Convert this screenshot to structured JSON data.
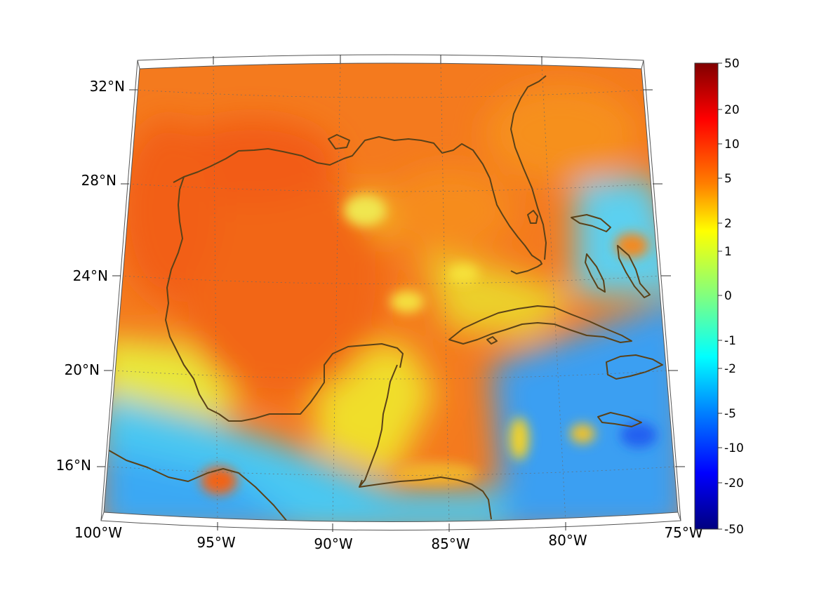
{
  "map": {
    "projection": "conic",
    "lon_range": [
      -100,
      -75
    ],
    "lat_range": [
      14,
      33
    ],
    "lon_ticks": [
      "100°W",
      "95°W",
      "90°W",
      "85°W",
      "80°W",
      "75°W"
    ],
    "lat_ticks": [
      "16°N",
      "20°N",
      "24°N",
      "28°N",
      "32°N"
    ],
    "grid": "dotted",
    "coastline_color": "#5a4118"
  },
  "colorbar": {
    "colormap": "jet",
    "scale": "symmetric-log",
    "labels": [
      "50",
      "20",
      "10",
      "5",
      "2",
      "1",
      "0",
      "-1",
      "-2",
      "-5",
      "-10",
      "-20",
      "-50"
    ],
    "colors": [
      "#800000",
      "#ff0000",
      "#ff8000",
      "#ffff00",
      "#80ff80",
      "#00ffff",
      "#0080ff",
      "#0000ff",
      "#000080"
    ]
  },
  "field_colors": {
    "north_land": "#f46a1c",
    "gulf_core": "#f26a1a",
    "gulf_east": "#f7931a",
    "yucatan": "#f2e22a",
    "south_land": "#5ed7f0",
    "pacific": "#39b4f4",
    "caribbean_east": "#2f8ff2",
    "atlantic_bahamas": "#4bc7f2"
  }
}
